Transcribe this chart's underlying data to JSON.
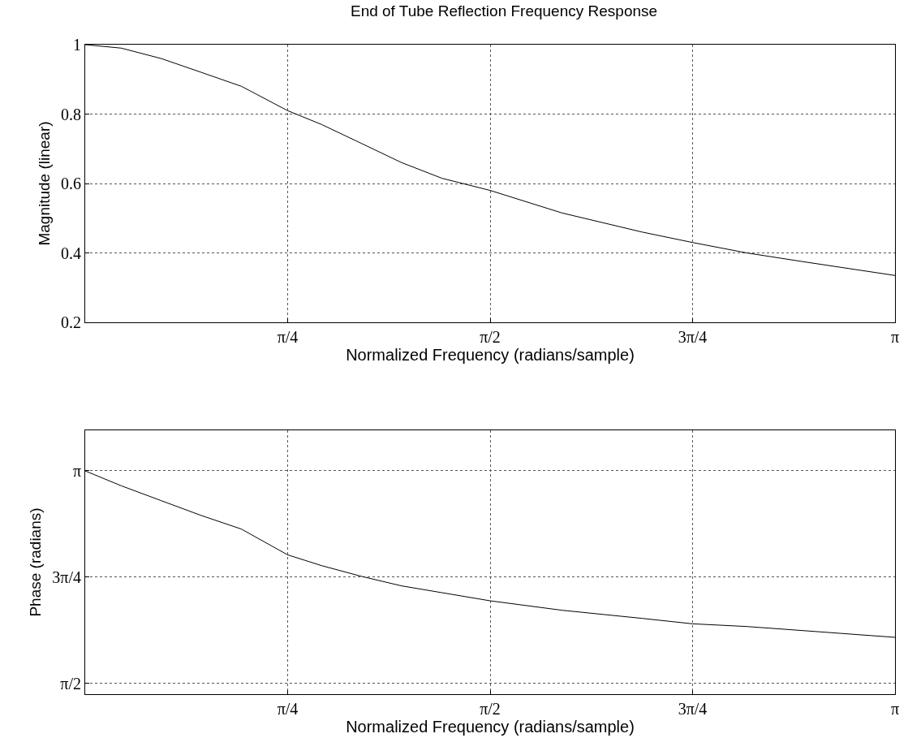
{
  "chart_data": [
    {
      "type": "line",
      "title": "End of Tube Reflection Frequency Response",
      "xlabel": "Normalized Frequency (radians/sample)",
      "ylabel": "Magnitude (linear)",
      "grid": true,
      "marker": "none",
      "line_style": "solid",
      "x": [
        0,
        0.14,
        0.295,
        0.451,
        0.606,
        0.785,
        0.917,
        1.073,
        1.228,
        1.384,
        1.571,
        1.85,
        2.161,
        2.356,
        2.566,
        2.783,
        3.1416
      ],
      "series": [
        {
          "color": "#000000",
          "values": [
            1.0,
            0.99,
            0.96,
            0.92,
            0.88,
            0.81,
            0.77,
            0.715,
            0.66,
            0.615,
            0.58,
            0.515,
            0.46,
            0.43,
            0.4,
            0.375,
            0.335
          ]
        }
      ],
      "xlim": [
        0,
        3.1416
      ],
      "xticks": [
        {
          "value": 0.7854,
          "label": "π/4"
        },
        {
          "value": 1.5708,
          "label": "π/2"
        },
        {
          "value": 2.3562,
          "label": "3π/4"
        },
        {
          "value": 3.1416,
          "label": "π"
        }
      ],
      "ylim": [
        0.2,
        1
      ],
      "yticks": [
        0.2,
        0.4,
        0.6,
        0.8,
        1
      ]
    },
    {
      "type": "line",
      "xlabel": "Normalized Frequency (radians/sample)",
      "ylabel": "Phase (radians)",
      "grid": true,
      "marker": "none",
      "line_style": "solid",
      "x": [
        0,
        0.14,
        0.295,
        0.451,
        0.606,
        0.785,
        0.917,
        1.073,
        1.228,
        1.384,
        1.571,
        1.85,
        2.161,
        2.356,
        2.566,
        2.783,
        3.1416
      ],
      "series": [
        {
          "color": "#000000",
          "values": [
            3.14,
            3.03,
            2.92,
            2.81,
            2.71,
            2.52,
            2.44,
            2.36,
            2.29,
            2.24,
            2.18,
            2.11,
            2.05,
            2.01,
            1.99,
            1.96,
            1.91
          ]
        }
      ],
      "xlim": [
        0,
        3.1416
      ],
      "xticks": [
        {
          "value": 0.7854,
          "label": "π/4"
        },
        {
          "value": 1.5708,
          "label": "π/2"
        },
        {
          "value": 2.3562,
          "label": "3π/4"
        },
        {
          "value": 3.1416,
          "label": "π"
        }
      ],
      "ylim": [
        1.49,
        3.44
      ],
      "yticks": [
        {
          "value": 1.5708,
          "label": "π/2"
        },
        {
          "value": 2.3562,
          "label": "3π/4"
        },
        {
          "value": 3.1416,
          "label": "π"
        }
      ]
    }
  ]
}
